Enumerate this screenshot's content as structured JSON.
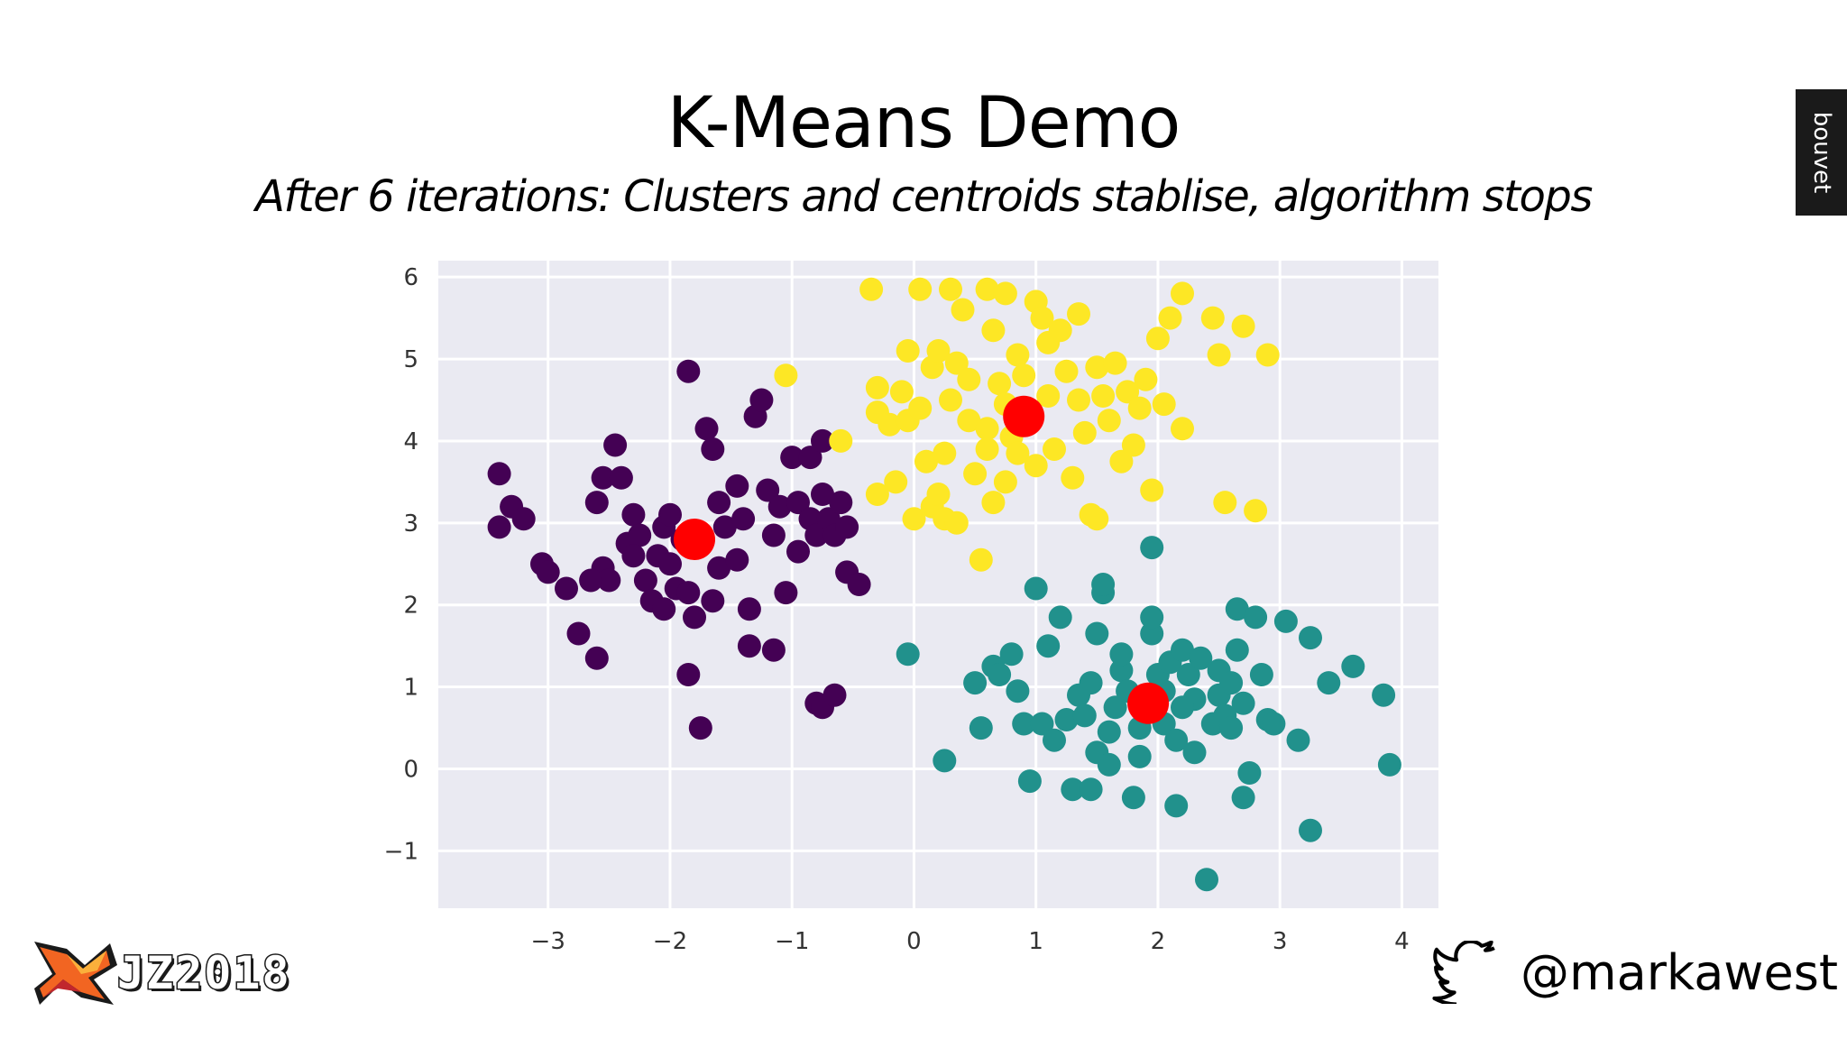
{
  "slide": {
    "title": "K-Means Demo",
    "subtitle": "After 6 iterations: Clusters and centroids stablise, algorithm stops",
    "brand": "bouvet",
    "conference_logo": "JZ2018",
    "twitter_handle": "@markawest",
    "twitter_icon": "twitter-bird-icon"
  },
  "chart_data": {
    "type": "scatter",
    "title": "",
    "xlabel": "",
    "ylabel": "",
    "xlim": [
      -3.9,
      4.3
    ],
    "ylim": [
      -1.7,
      6.2
    ],
    "xticks": [
      -3,
      -2,
      -1,
      0,
      1,
      2,
      3,
      4
    ],
    "yticks": [
      -1,
      0,
      1,
      2,
      3,
      4,
      5,
      6
    ],
    "xtick_labels": [
      "−3",
      "−2",
      "−1",
      "0",
      "1",
      "2",
      "3",
      "4"
    ],
    "ytick_labels": [
      "−1",
      "0",
      "1",
      "2",
      "3",
      "4",
      "5",
      "6"
    ],
    "grid": true,
    "background": "#eaeaf2",
    "series": [
      {
        "color": "#440154",
        "points": [
          [
            -3.4,
            3.6
          ],
          [
            -3.3,
            3.2
          ],
          [
            -3.4,
            2.95
          ],
          [
            -3.2,
            3.05
          ],
          [
            -3.05,
            2.5
          ],
          [
            -3.0,
            2.4
          ],
          [
            -2.85,
            2.2
          ],
          [
            -2.75,
            1.65
          ],
          [
            -2.6,
            3.25
          ],
          [
            -2.55,
            3.55
          ],
          [
            -2.45,
            3.95
          ],
          [
            -2.4,
            3.55
          ],
          [
            -2.55,
            2.45
          ],
          [
            -2.5,
            2.3
          ],
          [
            -2.65,
            2.3
          ],
          [
            -2.6,
            1.35
          ],
          [
            -2.35,
            2.75
          ],
          [
            -2.3,
            3.1
          ],
          [
            -2.25,
            2.85
          ],
          [
            -2.2,
            2.3
          ],
          [
            -2.15,
            2.05
          ],
          [
            -2.1,
            2.6
          ],
          [
            -2.05,
            2.95
          ],
          [
            -2.0,
            3.1
          ],
          [
            -2.0,
            2.5
          ],
          [
            -1.95,
            2.2
          ],
          [
            -1.9,
            2.8
          ],
          [
            -1.85,
            2.15
          ],
          [
            -1.8,
            1.85
          ],
          [
            -1.85,
            1.15
          ],
          [
            -1.75,
            0.5
          ],
          [
            -1.85,
            4.85
          ],
          [
            -1.7,
            4.15
          ],
          [
            -1.65,
            3.9
          ],
          [
            -1.6,
            3.25
          ],
          [
            -1.65,
            2.05
          ],
          [
            -1.6,
            2.45
          ],
          [
            -1.55,
            2.95
          ],
          [
            -1.45,
            3.45
          ],
          [
            -1.4,
            3.05
          ],
          [
            -1.35,
            1.5
          ],
          [
            -1.35,
            1.95
          ],
          [
            -1.3,
            4.3
          ],
          [
            -1.25,
            4.5
          ],
          [
            -1.2,
            3.4
          ],
          [
            -1.15,
            2.85
          ],
          [
            -1.1,
            3.2
          ],
          [
            -1.15,
            1.45
          ],
          [
            -1.05,
            2.15
          ],
          [
            -1.0,
            3.8
          ],
          [
            -0.95,
            3.25
          ],
          [
            -0.95,
            2.65
          ],
          [
            -0.85,
            3.8
          ],
          [
            -0.85,
            3.05
          ],
          [
            -0.8,
            2.85
          ],
          [
            -0.75,
            4.0
          ],
          [
            -0.75,
            3.35
          ],
          [
            -0.7,
            3.05
          ],
          [
            -0.65,
            2.85
          ],
          [
            -0.6,
            3.25
          ],
          [
            -0.55,
            2.95
          ],
          [
            -0.55,
            2.4
          ],
          [
            -0.45,
            2.25
          ],
          [
            -0.8,
            0.8
          ],
          [
            -0.75,
            0.75
          ],
          [
            -0.65,
            0.9
          ],
          [
            -2.3,
            2.6
          ],
          [
            -1.45,
            2.55
          ],
          [
            -2.05,
            1.95
          ]
        ]
      },
      {
        "color": "#21918c",
        "points": [
          [
            -0.05,
            1.4
          ],
          [
            0.25,
            0.1
          ],
          [
            0.5,
            1.05
          ],
          [
            0.55,
            0.5
          ],
          [
            0.65,
            1.25
          ],
          [
            0.7,
            1.15
          ],
          [
            0.8,
            1.4
          ],
          [
            0.85,
            0.95
          ],
          [
            0.9,
            0.55
          ],
          [
            0.95,
            -0.15
          ],
          [
            1.0,
            2.2
          ],
          [
            1.05,
            0.55
          ],
          [
            1.1,
            1.5
          ],
          [
            1.15,
            0.35
          ],
          [
            1.2,
            1.85
          ],
          [
            1.25,
            0.6
          ],
          [
            1.3,
            -0.25
          ],
          [
            1.35,
            0.9
          ],
          [
            1.4,
            0.65
          ],
          [
            1.45,
            -0.25
          ],
          [
            1.5,
            0.2
          ],
          [
            1.5,
            1.65
          ],
          [
            1.55,
            2.15
          ],
          [
            1.55,
            2.25
          ],
          [
            1.6,
            0.45
          ],
          [
            1.6,
            0.05
          ],
          [
            1.65,
            0.75
          ],
          [
            1.7,
            1.2
          ],
          [
            1.7,
            1.4
          ],
          [
            1.75,
            0.95
          ],
          [
            1.8,
            -0.35
          ],
          [
            1.85,
            0.15
          ],
          [
            1.85,
            0.5
          ],
          [
            1.9,
            0.85
          ],
          [
            1.95,
            1.65
          ],
          [
            1.95,
            1.85
          ],
          [
            1.95,
            2.7
          ],
          [
            2.0,
            1.15
          ],
          [
            2.05,
            0.95
          ],
          [
            2.05,
            0.55
          ],
          [
            2.1,
            1.3
          ],
          [
            2.15,
            -0.45
          ],
          [
            2.15,
            0.35
          ],
          [
            2.2,
            1.45
          ],
          [
            2.25,
            1.15
          ],
          [
            2.3,
            0.85
          ],
          [
            2.3,
            0.2
          ],
          [
            2.35,
            1.35
          ],
          [
            2.4,
            -1.35
          ],
          [
            2.45,
            0.55
          ],
          [
            2.5,
            0.9
          ],
          [
            2.5,
            1.2
          ],
          [
            2.55,
            0.65
          ],
          [
            2.6,
            1.05
          ],
          [
            2.6,
            0.5
          ],
          [
            2.65,
            1.45
          ],
          [
            2.65,
            1.95
          ],
          [
            2.7,
            0.8
          ],
          [
            2.7,
            -0.35
          ],
          [
            2.75,
            -0.05
          ],
          [
            2.8,
            1.85
          ],
          [
            2.85,
            1.15
          ],
          [
            2.9,
            0.6
          ],
          [
            3.05,
            1.8
          ],
          [
            3.15,
            0.35
          ],
          [
            3.25,
            1.6
          ],
          [
            3.25,
            -0.75
          ],
          [
            3.4,
            1.05
          ],
          [
            3.6,
            1.25
          ],
          [
            3.85,
            0.9
          ],
          [
            3.9,
            0.05
          ],
          [
            2.95,
            0.55
          ],
          [
            2.2,
            0.75
          ],
          [
            1.45,
            1.05
          ]
        ]
      },
      {
        "color": "#fde725",
        "points": [
          [
            -1.05,
            4.8
          ],
          [
            -0.6,
            4.0
          ],
          [
            -0.35,
            5.85
          ],
          [
            -0.3,
            4.65
          ],
          [
            -0.3,
            4.35
          ],
          [
            -0.3,
            3.35
          ],
          [
            -0.2,
            4.2
          ],
          [
            -0.15,
            3.5
          ],
          [
            -0.1,
            4.6
          ],
          [
            -0.05,
            5.1
          ],
          [
            -0.05,
            4.25
          ],
          [
            0.0,
            3.05
          ],
          [
            0.05,
            5.85
          ],
          [
            0.05,
            4.4
          ],
          [
            0.1,
            3.75
          ],
          [
            0.15,
            4.9
          ],
          [
            0.15,
            3.2
          ],
          [
            0.2,
            5.1
          ],
          [
            0.25,
            3.85
          ],
          [
            0.25,
            3.05
          ],
          [
            0.3,
            5.85
          ],
          [
            0.3,
            4.5
          ],
          [
            0.35,
            4.95
          ],
          [
            0.35,
            3.0
          ],
          [
            0.4,
            5.6
          ],
          [
            0.45,
            4.25
          ],
          [
            0.45,
            4.75
          ],
          [
            0.5,
            3.6
          ],
          [
            0.55,
            2.55
          ],
          [
            0.6,
            5.85
          ],
          [
            0.6,
            4.15
          ],
          [
            0.6,
            3.9
          ],
          [
            0.65,
            5.35
          ],
          [
            0.65,
            3.25
          ],
          [
            0.7,
            4.7
          ],
          [
            0.75,
            5.8
          ],
          [
            0.75,
            4.45
          ],
          [
            0.75,
            3.5
          ],
          [
            0.8,
            4.05
          ],
          [
            0.85,
            5.05
          ],
          [
            0.85,
            3.85
          ],
          [
            0.9,
            4.8
          ],
          [
            0.95,
            4.25
          ],
          [
            1.0,
            5.7
          ],
          [
            1.0,
            3.7
          ],
          [
            1.05,
            5.5
          ],
          [
            1.1,
            5.2
          ],
          [
            1.1,
            4.55
          ],
          [
            1.15,
            3.9
          ],
          [
            1.2,
            5.35
          ],
          [
            1.25,
            4.85
          ],
          [
            1.3,
            3.55
          ],
          [
            1.35,
            4.5
          ],
          [
            1.4,
            4.1
          ],
          [
            1.45,
            3.1
          ],
          [
            1.5,
            4.9
          ],
          [
            1.55,
            4.55
          ],
          [
            1.6,
            4.25
          ],
          [
            1.65,
            4.95
          ],
          [
            1.7,
            3.75
          ],
          [
            1.75,
            4.6
          ],
          [
            1.8,
            3.95
          ],
          [
            1.85,
            4.4
          ],
          [
            1.9,
            4.75
          ],
          [
            1.95,
            3.4
          ],
          [
            2.0,
            5.25
          ],
          [
            2.05,
            4.45
          ],
          [
            2.1,
            5.5
          ],
          [
            2.2,
            4.15
          ],
          [
            2.2,
            5.8
          ],
          [
            2.45,
            5.5
          ],
          [
            2.5,
            5.05
          ],
          [
            2.55,
            3.25
          ],
          [
            2.7,
            5.4
          ],
          [
            2.8,
            3.15
          ],
          [
            2.9,
            5.05
          ],
          [
            1.5,
            3.05
          ],
          [
            0.2,
            3.35
          ],
          [
            1.35,
            5.55
          ]
        ]
      },
      {
        "name": "",
        "color": "#ff0000",
        "role": "centroids",
        "points": [
          [
            -1.8,
            2.8
          ],
          [
            0.9,
            4.3
          ],
          [
            1.92,
            0.8
          ]
        ]
      }
    ]
  }
}
